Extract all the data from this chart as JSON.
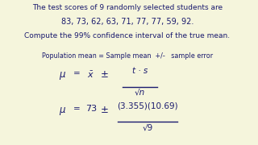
{
  "bg_color": "#f5f5dc",
  "text_color": "#1a1a6e",
  "line1": "The test scores of 9 randomly selected students are",
  "line2": "83, 73, 62, 63, 71, 77, 77, 59, 92.",
  "line3": "Compute the 99% confidence interval of the true mean.",
  "line4": "Population mean = Sample mean  +/-   sample error",
  "mu_formula_text": "\\u03bc  =  $\\bar{x}$  ±",
  "fraction_num": "t · s",
  "fraction_den": "\\u221an",
  "mu_numeric": "\\u03bc = 73 ±",
  "num2": "(3.355)(10.69)",
  "den2": "\\u221a9",
  "figsize": [
    3.2,
    1.8
  ],
  "dpi": 100
}
